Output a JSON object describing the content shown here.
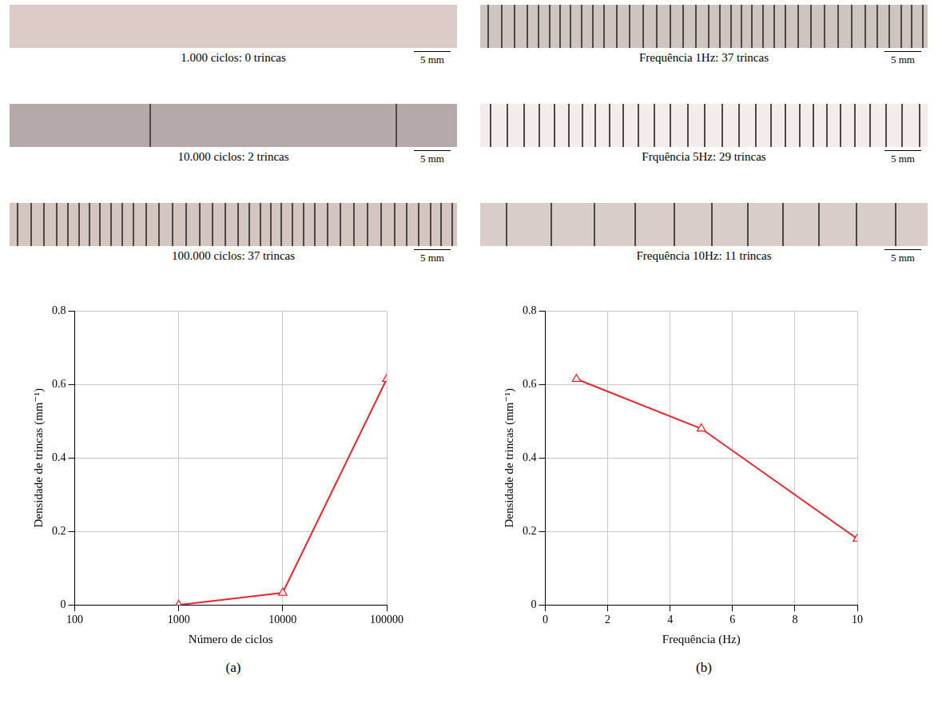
{
  "chart_data": [
    {
      "type": "line",
      "log": "x",
      "x_label": "Número de ciclos",
      "y_label": "Densidade de trincas (mm⁻¹)",
      "x": [
        1000,
        10000,
        100000
      ],
      "values": [
        0,
        0.033,
        0.615
      ],
      "color": "#e8262c",
      "marker": "triangle",
      "xlim": [
        100,
        100000
      ],
      "xticks": [
        100,
        1000,
        10000,
        100000
      ],
      "ylim": [
        0,
        0.8
      ],
      "yticks": [
        0,
        0.2,
        0.4,
        0.6,
        0.8
      ],
      "grid": true
    },
    {
      "type": "line",
      "x_label": "Frequência (Hz)",
      "y_label": "Densidade de trincas (mm⁻¹)",
      "x": [
        1,
        5,
        10
      ],
      "values": [
        0.615,
        0.48,
        0.18
      ],
      "color": "#e8262c",
      "marker": "triangle",
      "xlim": [
        0,
        10
      ],
      "xticks": [
        0,
        2,
        4,
        6,
        8,
        10
      ],
      "ylim": [
        0,
        0.8
      ],
      "yticks": [
        0,
        0.2,
        0.4,
        0.6,
        0.8
      ],
      "grid": true
    }
  ],
  "panels": [
    {
      "label": "(a)",
      "specimens": [
        {
          "caption": "1.000 ciclos: 0 trincas",
          "cracks": 0,
          "scale_bar": "5 mm",
          "color": "#dccbc6"
        },
        {
          "caption": "10.000 ciclos: 2 trincas",
          "cracks": 2,
          "scale_bar": "5 mm",
          "color": "#b5a9aa"
        },
        {
          "caption": "100.000 ciclos: 37 trincas",
          "cracks": 37,
          "scale_bar": "5 mm",
          "color": "#d3c6c0"
        }
      ]
    },
    {
      "label": "(b)",
      "specimens": [
        {
          "caption": "Frequência 1Hz: 37 trincas",
          "cracks": 37,
          "scale_bar": "5 mm",
          "color": "#cfc5c0"
        },
        {
          "caption": "Frquência 5Hz: 29 trincas",
          "cracks": 29,
          "scale_bar": "5 mm",
          "color": "#f4ecea"
        },
        {
          "caption": "Frequência 10Hz: 11 trincas",
          "cracks": 11,
          "scale_bar": "5 mm",
          "color": "#d8cdc9"
        }
      ]
    }
  ]
}
